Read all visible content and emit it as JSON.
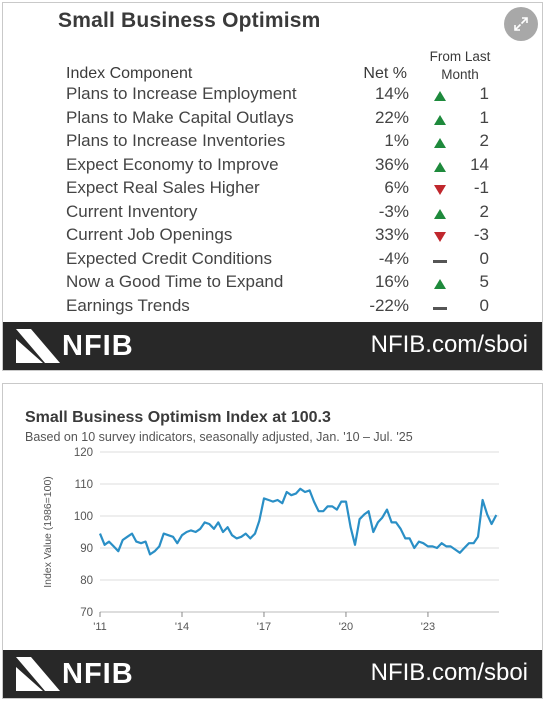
{
  "panel1": {
    "title": "Small Business Optimism",
    "headers": {
      "component": "Index Component",
      "net": "Net %",
      "from_last": "From Last",
      "month": "Month"
    },
    "colors": {
      "up": "#1e8a3c",
      "down": "#c0272d",
      "flat": "#555555"
    },
    "rows": [
      {
        "name": "Plans to Increase Employment",
        "net": "14%",
        "direction": "up",
        "change": "1"
      },
      {
        "name": "Plans to Make Capital Outlays",
        "net": "22%",
        "direction": "up",
        "change": "1"
      },
      {
        "name": "Plans to Increase Inventories",
        "net": "1%",
        "direction": "up",
        "change": "2"
      },
      {
        "name": "Expect Economy to Improve",
        "net": "36%",
        "direction": "up",
        "change": "14"
      },
      {
        "name": "Expect Real Sales Higher",
        "net": "6%",
        "direction": "down",
        "change": "-1"
      },
      {
        "name": "Current Inventory",
        "net": "-3%",
        "direction": "up",
        "change": "2"
      },
      {
        "name": "Current Job Openings",
        "net": "33%",
        "direction": "down",
        "change": "-3"
      },
      {
        "name": "Expected Credit Conditions",
        "net": "-4%",
        "direction": "flat",
        "change": "0"
      },
      {
        "name": "Now a Good Time to Expand",
        "net": "16%",
        "direction": "up",
        "change": "5"
      },
      {
        "name": "Earnings Trends",
        "net": "-22%",
        "direction": "flat",
        "change": "0"
      }
    ],
    "footer": {
      "logo": "NFIB",
      "url": "NFIB.com/sboi"
    }
  },
  "panel2": {
    "footer": {
      "logo": "NFIB",
      "url": "NFIB.com/sboi"
    }
  },
  "chart_data": {
    "type": "line",
    "title": "Small Business Optimism Index at 100.3",
    "subtitle": "Based on 10 survey indicators, seasonally adjusted, Jan. '10 – Jul. '25",
    "ylabel": "Index Value (1986=100)",
    "xlabel": "",
    "ylim": [
      70,
      120
    ],
    "yticks": [
      70,
      80,
      90,
      100,
      110,
      120
    ],
    "xlim": [
      2011,
      2025.6
    ],
    "xticks": [
      {
        "value": 2011,
        "label": "'11"
      },
      {
        "value": 2014,
        "label": "'14"
      },
      {
        "value": 2017,
        "label": "'17"
      },
      {
        "value": 2020,
        "label": "'20"
      },
      {
        "value": 2023,
        "label": "'23"
      }
    ],
    "grid": "horizontal",
    "line_color": "#2a8fc6",
    "series": [
      {
        "x": [
          2011.0,
          2011.17,
          2011.33,
          2011.5,
          2011.67,
          2011.83,
          2012.0,
          2012.17,
          2012.33,
          2012.5,
          2012.67,
          2012.83,
          2013.0,
          2013.17,
          2013.33,
          2013.5,
          2013.67,
          2013.83,
          2014.0,
          2014.17,
          2014.33,
          2014.5,
          2014.67,
          2014.83,
          2015.0,
          2015.17,
          2015.33,
          2015.5,
          2015.67,
          2015.83,
          2016.0,
          2016.17,
          2016.33,
          2016.5,
          2016.67,
          2016.83,
          2017.0,
          2017.17,
          2017.33,
          2017.5,
          2017.67,
          2017.83,
          2018.0,
          2018.17,
          2018.33,
          2018.5,
          2018.67,
          2018.83,
          2019.0,
          2019.17,
          2019.33,
          2019.5,
          2019.67,
          2019.83,
          2020.0,
          2020.17,
          2020.33,
          2020.5,
          2020.67,
          2020.83,
          2021.0,
          2021.17,
          2021.33,
          2021.5,
          2021.67,
          2021.83,
          2022.0,
          2022.17,
          2022.33,
          2022.5,
          2022.67,
          2022.83,
          2023.0,
          2023.17,
          2023.33,
          2023.5,
          2023.67,
          2023.83,
          2024.0,
          2024.17,
          2024.33,
          2024.5,
          2024.67,
          2024.83,
          2025.0,
          2025.17,
          2025.33,
          2025.5
        ],
        "y": [
          94.5,
          91.0,
          92.0,
          90.5,
          89.0,
          92.5,
          93.5,
          94.5,
          92.0,
          91.5,
          92.0,
          88.0,
          89.0,
          90.5,
          94.5,
          94.0,
          93.5,
          91.5,
          94.0,
          95.0,
          95.5,
          95.0,
          96.0,
          98.0,
          97.5,
          96.0,
          98.0,
          95.0,
          96.5,
          94.0,
          93.0,
          93.5,
          94.5,
          93.0,
          94.5,
          98.5,
          105.5,
          105.0,
          104.5,
          105.0,
          104.0,
          107.5,
          106.5,
          107.0,
          108.5,
          107.5,
          108.0,
          104.5,
          101.5,
          101.5,
          103.0,
          103.0,
          102.0,
          104.5,
          104.5,
          96.5,
          91.0,
          99.0,
          100.5,
          101.5,
          95.0,
          98.0,
          99.5,
          102.0,
          98.0,
          98.0,
          96.0,
          93.0,
          93.0,
          90.0,
          92.0,
          91.5,
          90.5,
          90.5,
          90.0,
          91.5,
          90.5,
          90.5,
          89.5,
          88.5,
          90.0,
          91.5,
          91.5,
          93.5,
          105.0,
          100.5,
          97.5,
          100.3
        ]
      }
    ]
  }
}
